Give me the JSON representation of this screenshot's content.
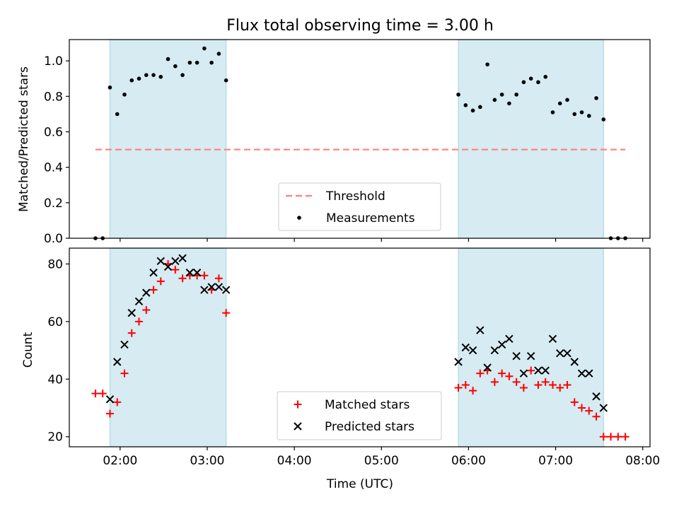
{
  "chart_data": [
    {
      "type": "scatter",
      "title": "Flux total observing time = 3.00 h",
      "xlabel": "",
      "ylabel": "Matched/Predicted stars",
      "x_is_time": true,
      "xlim": [
        "01:25",
        "08:05"
      ],
      "ylim": [
        0,
        1.12
      ],
      "yticks": [
        0.0,
        0.2,
        0.4,
        0.6,
        0.8,
        1.0
      ],
      "ytick_labels": [
        "0.0",
        "0.2",
        "0.4",
        "0.6",
        "0.8",
        "1.0"
      ],
      "xticks": [
        "02:00",
        "03:00",
        "04:00",
        "05:00",
        "06:00",
        "07:00",
        "08:00"
      ],
      "shaded_spans": [
        [
          "01:53",
          "03:13"
        ],
        [
          "05:53",
          "07:33"
        ]
      ],
      "shade_color": "#add8e6",
      "threshold": {
        "name": "Threshold",
        "value": 0.5,
        "x_range": [
          "01:43",
          "07:48"
        ],
        "color": "#ff7f7f"
      },
      "legend_position": "lower center",
      "series": [
        {
          "name": "Measurements",
          "marker": "dot",
          "color": "#000000",
          "points": [
            [
              "01:43",
              0.0
            ],
            [
              "01:48",
              0.0
            ],
            [
              "01:53",
              0.85
            ],
            [
              "01:58",
              0.7
            ],
            [
              "02:03",
              0.81
            ],
            [
              "02:08",
              0.89
            ],
            [
              "02:13",
              0.9
            ],
            [
              "02:18",
              0.92
            ],
            [
              "02:23",
              0.92
            ],
            [
              "02:28",
              0.91
            ],
            [
              "02:33",
              1.01
            ],
            [
              "02:38",
              0.97
            ],
            [
              "02:43",
              0.92
            ],
            [
              "02:48",
              0.99
            ],
            [
              "02:53",
              0.99
            ],
            [
              "02:58",
              1.07
            ],
            [
              "03:03",
              0.99
            ],
            [
              "03:08",
              1.04
            ],
            [
              "03:13",
              0.89
            ],
            [
              "05:53",
              0.81
            ],
            [
              "05:58",
              0.75
            ],
            [
              "06:03",
              0.72
            ],
            [
              "06:08",
              0.74
            ],
            [
              "06:13",
              0.98
            ],
            [
              "06:18",
              0.78
            ],
            [
              "06:23",
              0.81
            ],
            [
              "06:28",
              0.76
            ],
            [
              "06:33",
              0.81
            ],
            [
              "06:38",
              0.88
            ],
            [
              "06:43",
              0.9
            ],
            [
              "06:48",
              0.88
            ],
            [
              "06:53",
              0.91
            ],
            [
              "06:58",
              0.71
            ],
            [
              "07:03",
              0.76
            ],
            [
              "07:08",
              0.78
            ],
            [
              "07:13",
              0.7
            ],
            [
              "07:18",
              0.71
            ],
            [
              "07:23",
              0.69
            ],
            [
              "07:28",
              0.79
            ],
            [
              "07:33",
              0.67
            ],
            [
              "07:38",
              0.0
            ],
            [
              "07:43",
              0.0
            ],
            [
              "07:48",
              0.0
            ]
          ]
        }
      ]
    },
    {
      "type": "scatter",
      "title": "",
      "xlabel": "Time (UTC)",
      "ylabel": "Count",
      "x_is_time": true,
      "xlim": [
        "01:25",
        "08:05"
      ],
      "ylim": [
        16.5,
        85.5
      ],
      "yticks": [
        20,
        40,
        60,
        80
      ],
      "ytick_labels": [
        "20",
        "40",
        "60",
        "80"
      ],
      "xticks": [
        "02:00",
        "03:00",
        "04:00",
        "05:00",
        "06:00",
        "07:00",
        "08:00"
      ],
      "xtick_labels": [
        "02:00",
        "03:00",
        "04:00",
        "05:00",
        "06:00",
        "07:00",
        "08:00"
      ],
      "shaded_spans": [
        [
          "01:53",
          "03:13"
        ],
        [
          "05:53",
          "07:33"
        ]
      ],
      "shade_color": "#add8e6",
      "legend_position": "lower center",
      "series": [
        {
          "name": "Matched stars",
          "marker": "plus",
          "color": "#ff0000",
          "points": [
            [
              "01:43",
              35
            ],
            [
              "01:48",
              35
            ],
            [
              "01:53",
              28
            ],
            [
              "01:58",
              32
            ],
            [
              "02:03",
              42
            ],
            [
              "02:08",
              56
            ],
            [
              "02:13",
              60
            ],
            [
              "02:18",
              64
            ],
            [
              "02:23",
              71
            ],
            [
              "02:28",
              74
            ],
            [
              "02:33",
              80
            ],
            [
              "02:38",
              78
            ],
            [
              "02:43",
              75
            ],
            [
              "02:48",
              76
            ],
            [
              "02:53",
              76
            ],
            [
              "02:58",
              76
            ],
            [
              "03:03",
              71
            ],
            [
              "03:08",
              75
            ],
            [
              "03:13",
              63
            ],
            [
              "05:53",
              37
            ],
            [
              "05:58",
              38
            ],
            [
              "06:03",
              36
            ],
            [
              "06:08",
              42
            ],
            [
              "06:13",
              43
            ],
            [
              "06:18",
              39
            ],
            [
              "06:23",
              42
            ],
            [
              "06:28",
              41
            ],
            [
              "06:33",
              39
            ],
            [
              "06:38",
              37
            ],
            [
              "06:43",
              43
            ],
            [
              "06:48",
              38
            ],
            [
              "06:53",
              39
            ],
            [
              "06:58",
              38
            ],
            [
              "07:03",
              37
            ],
            [
              "07:08",
              38
            ],
            [
              "07:13",
              32
            ],
            [
              "07:18",
              30
            ],
            [
              "07:23",
              29
            ],
            [
              "07:28",
              27
            ],
            [
              "07:33",
              20
            ],
            [
              "07:38",
              20
            ],
            [
              "07:43",
              20
            ],
            [
              "07:48",
              20
            ]
          ]
        },
        {
          "name": "Predicted stars",
          "marker": "x",
          "color": "#000000",
          "points": [
            [
              "01:53",
              33
            ],
            [
              "01:58",
              46
            ],
            [
              "02:03",
              52
            ],
            [
              "02:08",
              63
            ],
            [
              "02:13",
              67
            ],
            [
              "02:18",
              70
            ],
            [
              "02:23",
              77
            ],
            [
              "02:28",
              81
            ],
            [
              "02:33",
              79
            ],
            [
              "02:38",
              81
            ],
            [
              "02:43",
              82
            ],
            [
              "02:48",
              77
            ],
            [
              "02:53",
              77
            ],
            [
              "02:58",
              71
            ],
            [
              "03:03",
              72
            ],
            [
              "03:08",
              72
            ],
            [
              "03:13",
              71
            ],
            [
              "05:53",
              46
            ],
            [
              "05:58",
              51
            ],
            [
              "06:03",
              50
            ],
            [
              "06:08",
              57
            ],
            [
              "06:13",
              44
            ],
            [
              "06:18",
              50
            ],
            [
              "06:23",
              52
            ],
            [
              "06:28",
              54
            ],
            [
              "06:33",
              48
            ],
            [
              "06:38",
              42
            ],
            [
              "06:43",
              48
            ],
            [
              "06:48",
              43
            ],
            [
              "06:53",
              43
            ],
            [
              "06:58",
              54
            ],
            [
              "07:03",
              49
            ],
            [
              "07:08",
              49
            ],
            [
              "07:13",
              46
            ],
            [
              "07:18",
              42
            ],
            [
              "07:23",
              42
            ],
            [
              "07:28",
              34
            ],
            [
              "07:33",
              30
            ]
          ]
        }
      ]
    }
  ]
}
